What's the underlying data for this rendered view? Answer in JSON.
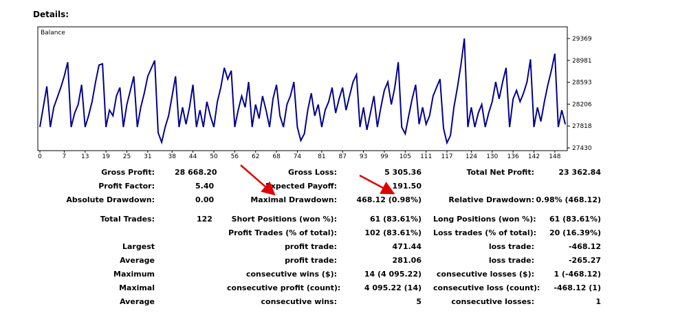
{
  "header": {
    "title": "Details:"
  },
  "chart_data": {
    "type": "line",
    "title": "Balance",
    "ylim": [
      27430,
      29369
    ],
    "yticks": [
      "29369",
      "28981",
      "28593",
      "28206",
      "27818",
      "27430"
    ],
    "yticks_values": [
      29369,
      28981,
      28593,
      28206,
      27818,
      27430
    ],
    "xticks": [
      "0",
      "7",
      "13",
      "19",
      "25",
      "31",
      "38",
      "44",
      "50",
      "56",
      "62",
      "68",
      "74",
      "81",
      "87",
      "93",
      "99",
      "105",
      "111",
      "117",
      "124",
      "130",
      "136",
      "142",
      "148"
    ],
    "xticks_values": [
      0,
      7,
      13,
      19,
      25,
      31,
      38,
      44,
      50,
      56,
      62,
      68,
      74,
      81,
      87,
      93,
      99,
      105,
      111,
      117,
      124,
      130,
      136,
      142,
      148
    ],
    "xlim": [
      0,
      150
    ],
    "line_color": "#00008b",
    "series": [
      {
        "points": [
          [
            0,
            27800
          ],
          [
            2,
            28520
          ],
          [
            3,
            27800
          ],
          [
            4,
            28150
          ],
          [
            6,
            28500
          ],
          [
            7,
            28700
          ],
          [
            8,
            28950
          ],
          [
            9,
            27800
          ],
          [
            10,
            28050
          ],
          [
            11,
            28200
          ],
          [
            12,
            28550
          ],
          [
            13,
            27800
          ],
          [
            14,
            28000
          ],
          [
            15,
            28250
          ],
          [
            16,
            28600
          ],
          [
            17,
            28900
          ],
          [
            18,
            28920
          ],
          [
            19,
            27800
          ],
          [
            20,
            28100
          ],
          [
            21,
            28000
          ],
          [
            22,
            28350
          ],
          [
            23,
            28500
          ],
          [
            24,
            27800
          ],
          [
            25,
            28200
          ],
          [
            26,
            28450
          ],
          [
            27,
            28700
          ],
          [
            28,
            27800
          ],
          [
            29,
            28150
          ],
          [
            30,
            28400
          ],
          [
            31,
            28700
          ],
          [
            33,
            28980
          ],
          [
            34,
            27700
          ],
          [
            35,
            27530
          ],
          [
            36,
            27800
          ],
          [
            37,
            28000
          ],
          [
            38,
            28350
          ],
          [
            39,
            28700
          ],
          [
            40,
            27800
          ],
          [
            41,
            28150
          ],
          [
            42,
            27850
          ],
          [
            43,
            28150
          ],
          [
            44,
            28550
          ],
          [
            45,
            27800
          ],
          [
            46,
            28100
          ],
          [
            47,
            27800
          ],
          [
            48,
            28250
          ],
          [
            49,
            28000
          ],
          [
            50,
            27800
          ],
          [
            51,
            28250
          ],
          [
            52,
            28500
          ],
          [
            53,
            28850
          ],
          [
            54,
            28650
          ],
          [
            55,
            28800
          ],
          [
            56,
            27800
          ],
          [
            57,
            28100
          ],
          [
            58,
            28350
          ],
          [
            59,
            28150
          ],
          [
            60,
            28600
          ],
          [
            61,
            27800
          ],
          [
            62,
            28200
          ],
          [
            63,
            27950
          ],
          [
            64,
            28350
          ],
          [
            65,
            28100
          ],
          [
            66,
            27800
          ],
          [
            67,
            28300
          ],
          [
            68,
            28550
          ],
          [
            69,
            28000
          ],
          [
            70,
            27800
          ],
          [
            71,
            28200
          ],
          [
            72,
            28350
          ],
          [
            73,
            28600
          ],
          [
            74,
            27800
          ],
          [
            75,
            27560
          ],
          [
            76,
            27680
          ],
          [
            77,
            28100
          ],
          [
            78,
            28400
          ],
          [
            79,
            28000
          ],
          [
            80,
            28200
          ],
          [
            81,
            27800
          ],
          [
            82,
            28100
          ],
          [
            83,
            28250
          ],
          [
            84,
            28500
          ],
          [
            85,
            28050
          ],
          [
            86,
            28300
          ],
          [
            87,
            28500
          ],
          [
            88,
            28100
          ],
          [
            89,
            28350
          ],
          [
            90,
            28600
          ],
          [
            91,
            28730
          ],
          [
            92,
            27800
          ],
          [
            93,
            28150
          ],
          [
            94,
            27750
          ],
          [
            95,
            28050
          ],
          [
            96,
            28350
          ],
          [
            97,
            27800
          ],
          [
            98,
            28150
          ],
          [
            99,
            28450
          ],
          [
            100,
            28600
          ],
          [
            101,
            28200
          ],
          [
            102,
            28500
          ],
          [
            103,
            28950
          ],
          [
            104,
            27800
          ],
          [
            105,
            27680
          ],
          [
            106,
            28000
          ],
          [
            107,
            28300
          ],
          [
            108,
            28550
          ],
          [
            109,
            27850
          ],
          [
            110,
            28150
          ],
          [
            111,
            27850
          ],
          [
            112,
            28000
          ],
          [
            113,
            28350
          ],
          [
            114,
            28500
          ],
          [
            115,
            28650
          ],
          [
            116,
            27780
          ],
          [
            117,
            27520
          ],
          [
            118,
            27650
          ],
          [
            119,
            28150
          ],
          [
            120,
            28500
          ],
          [
            121,
            28900
          ],
          [
            122,
            29369
          ],
          [
            123,
            27800
          ],
          [
            124,
            28150
          ],
          [
            125,
            27800
          ],
          [
            126,
            28050
          ],
          [
            127,
            28200
          ],
          [
            128,
            27800
          ],
          [
            129,
            28050
          ],
          [
            130,
            28250
          ],
          [
            131,
            28600
          ],
          [
            132,
            28300
          ],
          [
            133,
            28600
          ],
          [
            134,
            28850
          ],
          [
            135,
            27800
          ],
          [
            136,
            28300
          ],
          [
            137,
            28450
          ],
          [
            138,
            28250
          ],
          [
            139,
            28400
          ],
          [
            140,
            28600
          ],
          [
            141,
            29000
          ],
          [
            142,
            27800
          ],
          [
            143,
            28150
          ],
          [
            144,
            27900
          ],
          [
            145,
            28250
          ],
          [
            146,
            28550
          ],
          [
            147,
            28800
          ],
          [
            148,
            29100
          ],
          [
            149,
            27800
          ],
          [
            150,
            28100
          ],
          [
            151,
            27850
          ]
        ]
      }
    ]
  },
  "stats": {
    "gross_profit_label": "Gross Profit:",
    "gross_profit": "28 668.20",
    "gross_loss_label": "Gross Loss:",
    "gross_loss": "5 305.36",
    "total_net_profit_label": "Total Net Profit:",
    "total_net_profit": "23 362.84",
    "profit_factor_label": "Profit Factor:",
    "profit_factor": "5.40",
    "expected_payoff_label": "Expected Payoff:",
    "expected_payoff": "191.50",
    "absolute_drawdown_label": "Absolute Drawdown:",
    "absolute_drawdown": "0.00",
    "maximal_drawdown_label": "Maximal Drawdown:",
    "maximal_drawdown": "468.12 (0.98%)",
    "relative_drawdown_label": "Relative Drawdown:",
    "relative_drawdown": "0.98% (468.12)",
    "total_trades_label": "Total Trades:",
    "total_trades": "122",
    "short_positions_label": "Short Positions (won %):",
    "short_positions": "61 (83.61%)",
    "long_positions_label": "Long Positions (won %):",
    "long_positions": "61 (83.61%)",
    "profit_trades_label": "Profit Trades (% of total):",
    "profit_trades": "102 (83.61%)",
    "loss_trades_label": "Loss trades (% of total):",
    "loss_trades": "20 (16.39%)",
    "largest_label": "Largest",
    "largest_profit_label": "profit trade:",
    "largest_profit": "471.44",
    "largest_loss_label": "loss trade:",
    "largest_loss": "-468.12",
    "average_label": "Average",
    "average_profit_label": "profit trade:",
    "average_profit": "281.06",
    "average_loss_label": "loss trade:",
    "average_loss": "-265.27",
    "maximum_label": "Maximum",
    "max_cons_wins_label": "consecutive wins ($):",
    "max_cons_wins": "14 (4 095.22)",
    "max_cons_losses_label": "consecutive losses ($):",
    "max_cons_losses": "1 (-468.12)",
    "maximal_label": "Maximal",
    "maximal_cons_profit_label": "consecutive profit (count):",
    "maximal_cons_profit": "4 095.22 (14)",
    "maximal_cons_loss_label": "consecutive loss (count):",
    "maximal_cons_loss": "-468.12 (1)",
    "average2_label": "Average",
    "avg_cons_wins_label": "consecutive wins:",
    "avg_cons_wins": "5",
    "avg_cons_losses_label": "consecutive losses:",
    "avg_cons_losses": "1"
  },
  "colors": {
    "arrow": "#e00000",
    "line": "#00008b"
  }
}
